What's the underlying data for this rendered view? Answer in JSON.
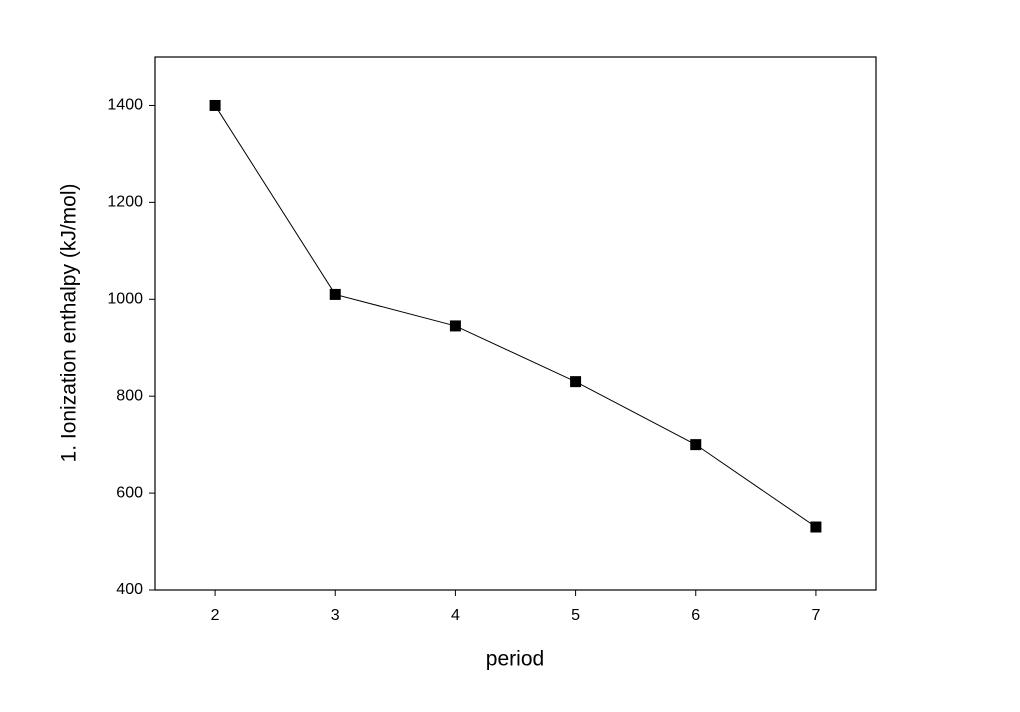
{
  "chart_data": {
    "type": "line",
    "xlabel": "period",
    "ylabel": "1. Ionization enthalpy (kJ/mol)",
    "x": [
      2,
      3,
      4,
      5,
      6,
      7
    ],
    "series": [
      {
        "color": "#000000",
        "values": [
          1400,
          1010,
          945,
          830,
          700,
          530
        ]
      }
    ],
    "xlim": [
      1.5,
      7.5
    ],
    "xticks": [
      2,
      3,
      4,
      5,
      6,
      7
    ],
    "ylim": [
      400,
      1500
    ],
    "yticks": [
      400,
      600,
      800,
      1000,
      1200,
      1400
    ],
    "grid": false
  }
}
